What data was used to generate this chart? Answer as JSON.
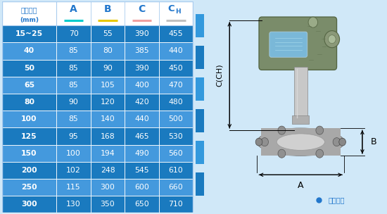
{
  "col_headers_line1": [
    "仪表口径",
    "A",
    "B",
    "C",
    "CH"
  ],
  "col_headers_line2": [
    "(mm)",
    "",
    "",
    "",
    ""
  ],
  "col_underline_colors": [
    "none",
    "#00cccc",
    "#e8c800",
    "#f0a0a0",
    "#c0c0c0"
  ],
  "header_letter_color": "#2277cc",
  "rows": [
    [
      "15~25",
      "70",
      "55",
      "390",
      "455"
    ],
    [
      "40",
      "85",
      "80",
      "385",
      "440"
    ],
    [
      "50",
      "85",
      "90",
      "390",
      "450"
    ],
    [
      "65",
      "85",
      "105",
      "400",
      "470"
    ],
    [
      "80",
      "90",
      "120",
      "420",
      "480"
    ],
    [
      "100",
      "85",
      "140",
      "440",
      "500"
    ],
    [
      "125",
      "95",
      "168",
      "465",
      "530"
    ],
    [
      "150",
      "100",
      "194",
      "490",
      "560"
    ],
    [
      "200",
      "102",
      "248",
      "545",
      "610"
    ],
    [
      "250",
      "115",
      "300",
      "600",
      "660"
    ],
    [
      "300",
      "130",
      "350",
      "650",
      "710"
    ]
  ],
  "row_dark_indices": [
    0,
    2,
    4,
    6,
    8,
    10
  ],
  "dark_row_color": "#1a7abf",
  "light_row_color": "#4499dd",
  "header_bg": "#ffffff",
  "header_first_cell_bg": "#ffffff",
  "first_col_header_color": "#2277cc",
  "border_color": "#aaccee",
  "bg_color": "#d0e8f8",
  "right_bg": "#ddeeff",
  "diagram_bg": "#e8f3fc"
}
